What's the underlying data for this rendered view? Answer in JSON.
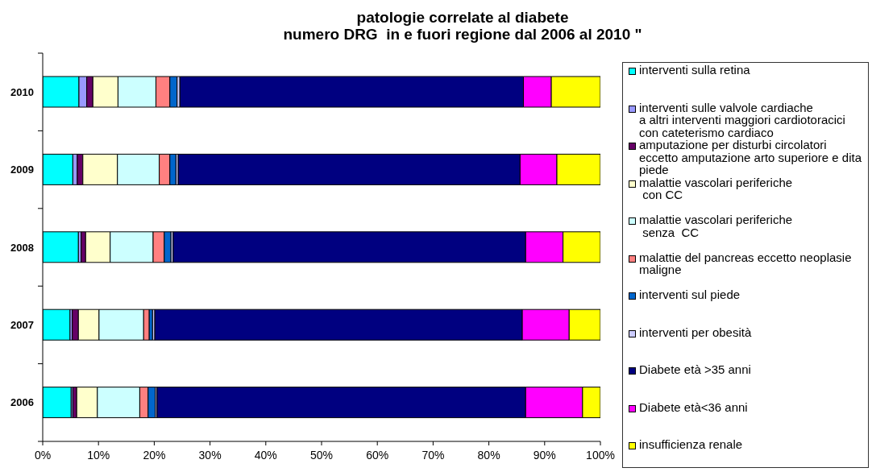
{
  "chart_data": {
    "type": "bar",
    "orientation": "horizontal",
    "stacked": true,
    "title": "patologie correlate al diabete",
    "subtitle": "numero DRG  in e fuori regione dal 2006 al 2010 \"",
    "categories": [
      "2010",
      "2009",
      "2008",
      "2007",
      "2006"
    ],
    "series": [
      {
        "name": "interventi sulla retina",
        "color": "#00ffff",
        "values": [
          6.5,
          5.4,
          6.4,
          4.9,
          5.1
        ]
      },
      {
        "name": "interventi sulle valvole cardiache\na altri interventi maggiori cardiotoracici\ncon cateterismo cardiaco",
        "color": "#9999ff",
        "values": [
          1.4,
          0.8,
          0.5,
          0.4,
          0.3
        ]
      },
      {
        "name": "amputazione per disturbi circolatori\neccetto amputazione arto superiore e dita\npiede",
        "color": "#660066",
        "values": [
          1.1,
          1.0,
          0.8,
          1.1,
          0.7
        ]
      },
      {
        "name": "malattie vascolari periferiche\n con CC",
        "color": "#ffffcc",
        "values": [
          4.5,
          6.2,
          4.4,
          3.7,
          3.7
        ]
      },
      {
        "name": "malattie vascolari periferiche\n senza  CC",
        "color": "#ccffff",
        "values": [
          6.8,
          7.5,
          7.7,
          8.0,
          7.6
        ]
      },
      {
        "name": "malattie del pancreas eccetto neoplasie\nmaligne",
        "color": "#ff8080",
        "values": [
          2.5,
          1.9,
          2.0,
          1.0,
          1.5
        ]
      },
      {
        "name": "interventi sul piede",
        "color": "#0066cc",
        "values": [
          1.3,
          1.1,
          1.2,
          0.6,
          1.3
        ]
      },
      {
        "name": "interventi per obesità",
        "color": "#ccccff",
        "values": [
          0.5,
          0.4,
          0.4,
          0.4,
          0.3
        ]
      },
      {
        "name": "Diabete età >35 anni",
        "color": "#000080",
        "values": [
          61.6,
          61.3,
          63.2,
          65.9,
          66.1
        ]
      },
      {
        "name": "Diabete età<36 anni",
        "color": "#ff00ff",
        "values": [
          5.0,
          6.6,
          6.7,
          8.4,
          10.2
        ]
      },
      {
        "name": "insufficienza renale",
        "color": "#ffff00",
        "values": [
          8.8,
          7.8,
          6.7,
          5.6,
          3.2
        ]
      }
    ],
    "xlim": [
      0,
      100
    ],
    "xticks": [
      {
        "value": 0,
        "label": "0%"
      },
      {
        "value": 10,
        "label": "10%"
      },
      {
        "value": 20,
        "label": "20%"
      },
      {
        "value": 30,
        "label": "30%"
      },
      {
        "value": 40,
        "label": "40%"
      },
      {
        "value": 50,
        "label": "50%"
      },
      {
        "value": 60,
        "label": "60%"
      },
      {
        "value": 70,
        "label": "70%"
      },
      {
        "value": 80,
        "label": "80%"
      },
      {
        "value": 90,
        "label": "90%"
      },
      {
        "value": 100,
        "label": "100%"
      }
    ],
    "grid": false,
    "legend": "right"
  }
}
